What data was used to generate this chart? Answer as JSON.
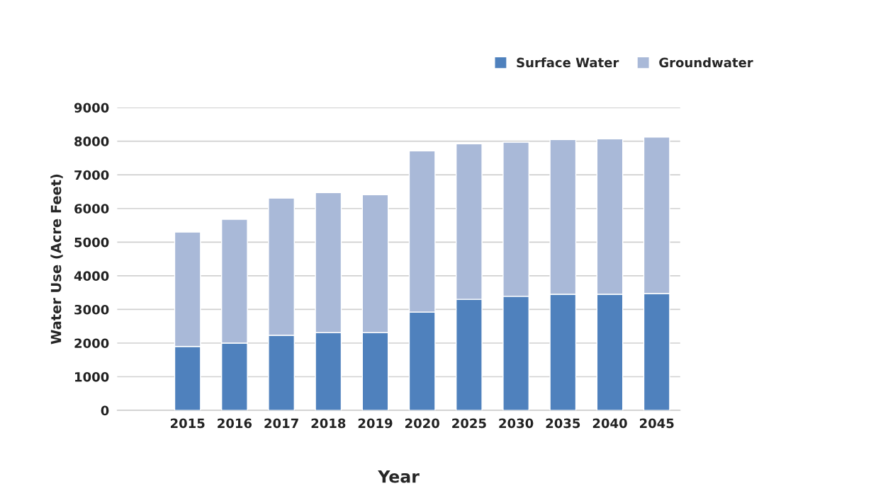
{
  "chart_data": {
    "type": "bar",
    "stacked": true,
    "xlabel": "Year",
    "ylabel": "Water Use (Acre Feet)",
    "categories": [
      null,
      "2015",
      "2016",
      "2017",
      "2018",
      "2019",
      "2020",
      "2025",
      "2030",
      "2035",
      "2040",
      "2045"
    ],
    "series": [
      {
        "name": "Surface Water",
        "color": "#4f81bd",
        "values": [
          null,
          1900,
          2000,
          2230,
          2310,
          2310,
          2920,
          3300,
          3390,
          3450,
          3450,
          3470
        ]
      },
      {
        "name": "Groundwater",
        "color": "#a9b9d8",
        "values": [
          null,
          3400,
          3680,
          4080,
          4160,
          4100,
          4790,
          4620,
          4580,
          4600,
          4620,
          4650
        ]
      }
    ],
    "ylim": [
      0,
      9000
    ],
    "yticks": [
      0,
      1000,
      2000,
      3000,
      4000,
      5000,
      6000,
      7000,
      8000,
      9000
    ],
    "grid": "y",
    "legend": "top right"
  }
}
